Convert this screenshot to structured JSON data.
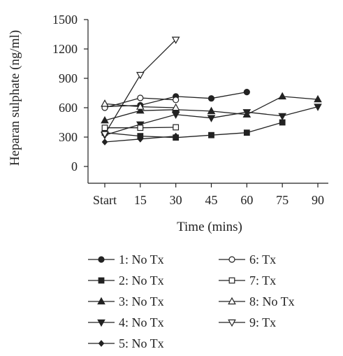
{
  "chart_data": {
    "type": "line",
    "xlabel": "Time (mins)",
    "ylabel": "Heparan sulphate (ng/ml)",
    "x_ticks": [
      "Start",
      "15",
      "30",
      "45",
      "60",
      "75",
      "90"
    ],
    "x_values": [
      0,
      15,
      30,
      45,
      60,
      75,
      90
    ],
    "y_ticks": [
      "0",
      "300",
      "600",
      "900",
      "1200",
      "1500"
    ],
    "ylim": [
      0,
      1500
    ],
    "xlim": [
      0,
      90
    ],
    "grid": false,
    "legend_position": "bottom",
    "series": [
      {
        "name": "1: No Tx",
        "marker": "circle-filled",
        "x": [
          0,
          15,
          30,
          45,
          60
        ],
        "y": [
          610,
          625,
          715,
          695,
          760
        ]
      },
      {
        "name": "2: No Tx",
        "marker": "square-filled",
        "x": [
          0,
          15,
          30,
          45,
          60,
          75
        ],
        "y": [
          345,
          310,
          295,
          320,
          345,
          450
        ]
      },
      {
        "name": "3: No Tx",
        "marker": "triangle-up-filled",
        "x": [
          0,
          15,
          30,
          45,
          60,
          75,
          90
        ],
        "y": [
          470,
          570,
          580,
          565,
          530,
          715,
          685
        ]
      },
      {
        "name": "4: No Tx",
        "marker": "triangle-down-filled",
        "x": [
          0,
          15,
          30,
          45,
          60,
          75,
          90
        ],
        "y": [
          320,
          430,
          530,
          495,
          555,
          515,
          610
        ]
      },
      {
        "name": "5: No Tx",
        "marker": "diamond-filled",
        "x": [
          0,
          15,
          30
        ],
        "y": [
          250,
          280,
          310
        ]
      },
      {
        "name": "6: Tx",
        "marker": "circle-open",
        "x": [
          0,
          15,
          30
        ],
        "y": [
          600,
          700,
          680
        ]
      },
      {
        "name": "7: Tx",
        "marker": "square-open",
        "x": [
          0,
          15,
          30
        ],
        "y": [
          395,
          395,
          400
        ]
      },
      {
        "name": "8: No Tx",
        "marker": "triangle-up-open",
        "x": [
          0,
          15,
          30
        ],
        "y": [
          640,
          610,
          600
        ]
      },
      {
        "name": "9: Tx",
        "marker": "triangle-down-open",
        "x": [
          0,
          15,
          30
        ],
        "y": [
          330,
          935,
          1295
        ]
      }
    ]
  }
}
